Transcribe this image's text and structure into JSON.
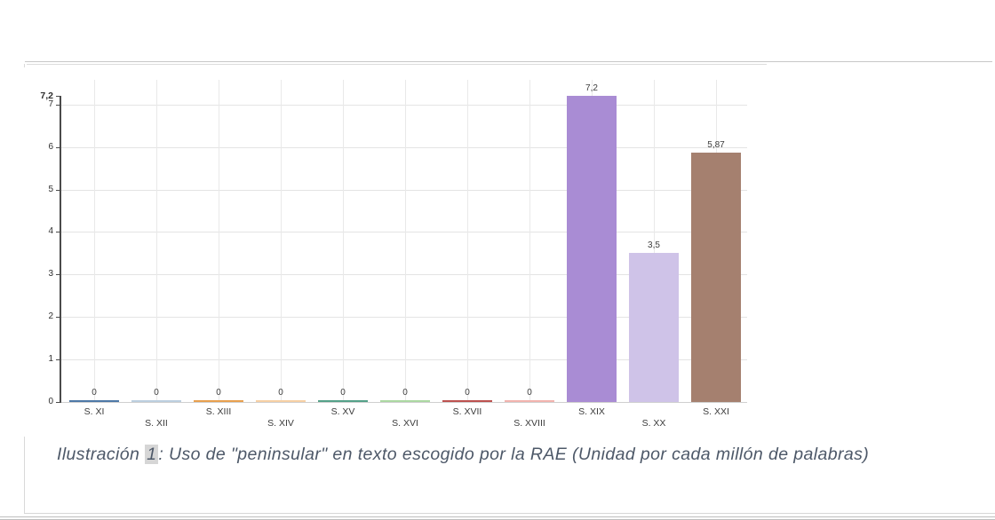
{
  "document": {
    "caption": {
      "label": "Ilustración ",
      "number": "1",
      "body": ": Uso de \"peninsular\" en texto escogido por la RAE (Unidad por cada millón de palabras)"
    }
  },
  "chart_data": {
    "type": "bar",
    "title": "",
    "xlabel": "",
    "ylabel": "",
    "categories": [
      "S. XI",
      "S. XII",
      "S. XIII",
      "S. XIV",
      "S. XV",
      "S. XVI",
      "S. XVII",
      "S. XVIII",
      "S. XIX",
      "S. XX",
      "S. XXI"
    ],
    "values": [
      0,
      0,
      0,
      0,
      0,
      0,
      0,
      0,
      7.2,
      3.5,
      5.87
    ],
    "value_labels": [
      "0",
      "0",
      "0",
      "0",
      "0",
      "0",
      "0",
      "0",
      "7,2",
      "3,5",
      "5,87"
    ],
    "bar_colors": [
      "#4e79a7",
      "#bccfdf",
      "#e8a04f",
      "#f6d0a4",
      "#55a189",
      "#abd8a2",
      "#bd5250",
      "#f2b3ae",
      "#a98cd4",
      "#cfc3e8",
      "#a5806f"
    ],
    "ylim": [
      0,
      7.2
    ],
    "y_tick_labels": [
      "7,2",
      "7",
      "6",
      "5",
      "4",
      "3",
      "2",
      "1",
      "0"
    ],
    "y_tick_values": [
      7.2,
      7,
      6,
      5,
      4,
      3,
      2,
      1,
      0
    ],
    "grid": true,
    "legend": "none",
    "decimal_separator": ","
  }
}
